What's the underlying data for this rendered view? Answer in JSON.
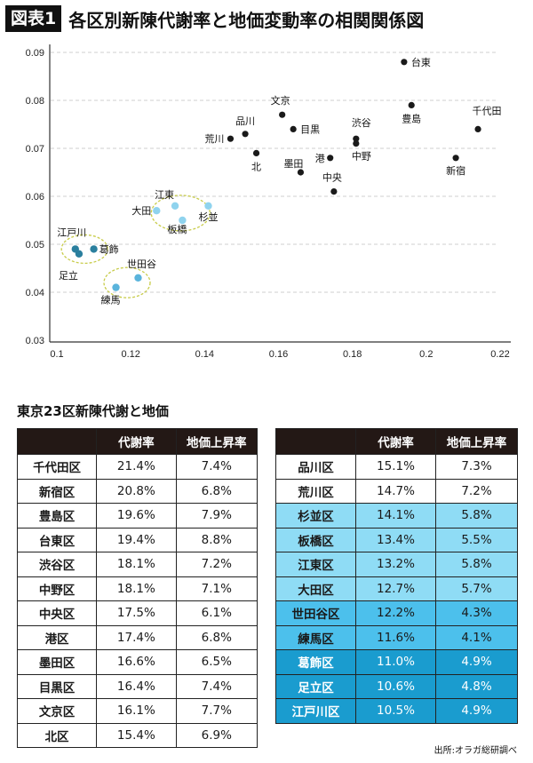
{
  "header": {
    "badge": "図表1",
    "title": "各区別新陳代謝率と地価変動率の相関関係図"
  },
  "chart_data": {
    "type": "scatter",
    "title": "各区別新陳代謝率と地価変動率の相関関係図",
    "xlabel": "",
    "ylabel": "",
    "xlim": [
      0.1,
      0.22
    ],
    "ylim": [
      0.03,
      0.09
    ],
    "x_ticks": [
      "0.1",
      "0.12",
      "0.14",
      "0.16",
      "0.18",
      "0.2",
      "0.22"
    ],
    "y_ticks": [
      "0.09",
      "0.08",
      "0.07",
      "0.06",
      "0.05",
      "0.04",
      "0.03"
    ],
    "grid": "horizontal-dashed",
    "colors": {
      "black": "#1a1a1a",
      "light_blue": "#8fd3ee",
      "mid_blue": "#5ab4dc",
      "dark_teal": "#2a7f9e",
      "ellipse": "#c8cc4a"
    },
    "points": [
      {
        "name": "千代田",
        "x": 0.214,
        "y": 0.074,
        "group": "black"
      },
      {
        "name": "新宿",
        "x": 0.208,
        "y": 0.068,
        "group": "black"
      },
      {
        "name": "豊島",
        "x": 0.196,
        "y": 0.079,
        "group": "black"
      },
      {
        "name": "台東",
        "x": 0.194,
        "y": 0.088,
        "group": "black"
      },
      {
        "name": "渋谷",
        "x": 0.181,
        "y": 0.072,
        "group": "black"
      },
      {
        "name": "中野",
        "x": 0.181,
        "y": 0.071,
        "group": "black"
      },
      {
        "name": "中央",
        "x": 0.175,
        "y": 0.061,
        "group": "black"
      },
      {
        "name": "港",
        "x": 0.174,
        "y": 0.068,
        "group": "black"
      },
      {
        "name": "墨田",
        "x": 0.166,
        "y": 0.065,
        "group": "black"
      },
      {
        "name": "目黒",
        "x": 0.164,
        "y": 0.074,
        "group": "black"
      },
      {
        "name": "文京",
        "x": 0.161,
        "y": 0.077,
        "group": "black"
      },
      {
        "name": "北",
        "x": 0.154,
        "y": 0.069,
        "group": "black"
      },
      {
        "name": "品川",
        "x": 0.151,
        "y": 0.073,
        "group": "black"
      },
      {
        "name": "荒川",
        "x": 0.147,
        "y": 0.072,
        "group": "black"
      },
      {
        "name": "杉並",
        "x": 0.141,
        "y": 0.058,
        "group": "light_blue"
      },
      {
        "name": "板橋",
        "x": 0.134,
        "y": 0.055,
        "group": "light_blue"
      },
      {
        "name": "江東",
        "x": 0.132,
        "y": 0.058,
        "group": "light_blue"
      },
      {
        "name": "大田",
        "x": 0.127,
        "y": 0.057,
        "group": "light_blue"
      },
      {
        "name": "世田谷",
        "x": 0.122,
        "y": 0.043,
        "group": "mid_blue"
      },
      {
        "name": "練馬",
        "x": 0.116,
        "y": 0.041,
        "group": "mid_blue"
      },
      {
        "name": "葛飾",
        "x": 0.11,
        "y": 0.049,
        "group": "dark_teal"
      },
      {
        "name": "足立",
        "x": 0.106,
        "y": 0.048,
        "group": "dark_teal"
      },
      {
        "name": "江戸川",
        "x": 0.105,
        "y": 0.049,
        "group": "dark_teal"
      }
    ]
  },
  "table_section": {
    "title": "東京23区新陳代謝と地価",
    "headers": [
      "",
      "代謝率",
      "地価上昇率"
    ],
    "colors": {
      "header_bg": "#231815",
      "light": "#8fdcf5",
      "mid": "#4cc0ec",
      "dark": "#1a9ccf",
      "white": "#ffffff"
    },
    "left_rows": [
      {
        "name": "千代田区",
        "rate": "21.4%",
        "land": "7.4%",
        "tone": "white"
      },
      {
        "name": "新宿区",
        "rate": "20.8%",
        "land": "6.8%",
        "tone": "white"
      },
      {
        "name": "豊島区",
        "rate": "19.6%",
        "land": "7.9%",
        "tone": "white"
      },
      {
        "name": "台東区",
        "rate": "19.4%",
        "land": "8.8%",
        "tone": "white"
      },
      {
        "name": "渋谷区",
        "rate": "18.1%",
        "land": "7.2%",
        "tone": "white"
      },
      {
        "name": "中野区",
        "rate": "18.1%",
        "land": "7.1%",
        "tone": "white"
      },
      {
        "name": "中央区",
        "rate": "17.5%",
        "land": "6.1%",
        "tone": "white"
      },
      {
        "name": "港区",
        "rate": "17.4%",
        "land": "6.8%",
        "tone": "white"
      },
      {
        "name": "墨田区",
        "rate": "16.6%",
        "land": "6.5%",
        "tone": "white"
      },
      {
        "name": "目黒区",
        "rate": "16.4%",
        "land": "7.4%",
        "tone": "white"
      },
      {
        "name": "文京区",
        "rate": "16.1%",
        "land": "7.7%",
        "tone": "white"
      },
      {
        "name": "北区",
        "rate": "15.4%",
        "land": "6.9%",
        "tone": "white"
      }
    ],
    "right_rows": [
      {
        "name": "品川区",
        "rate": "15.1%",
        "land": "7.3%",
        "tone": "white"
      },
      {
        "name": "荒川区",
        "rate": "14.7%",
        "land": "7.2%",
        "tone": "white"
      },
      {
        "name": "杉並区",
        "rate": "14.1%",
        "land": "5.8%",
        "tone": "light"
      },
      {
        "name": "板橋区",
        "rate": "13.4%",
        "land": "5.5%",
        "tone": "light"
      },
      {
        "name": "江東区",
        "rate": "13.2%",
        "land": "5.8%",
        "tone": "light"
      },
      {
        "name": "大田区",
        "rate": "12.7%",
        "land": "5.7%",
        "tone": "light"
      },
      {
        "name": "世田谷区",
        "rate": "12.2%",
        "land": "4.3%",
        "tone": "mid"
      },
      {
        "name": "練馬区",
        "rate": "11.6%",
        "land": "4.1%",
        "tone": "mid"
      },
      {
        "name": "葛飾区",
        "rate": "11.0%",
        "land": "4.9%",
        "tone": "dark"
      },
      {
        "name": "足立区",
        "rate": "10.6%",
        "land": "4.8%",
        "tone": "dark"
      },
      {
        "name": "江戸川区",
        "rate": "10.5%",
        "land": "4.9%",
        "tone": "dark"
      }
    ],
    "source": "出所:オラガ総研調べ"
  }
}
